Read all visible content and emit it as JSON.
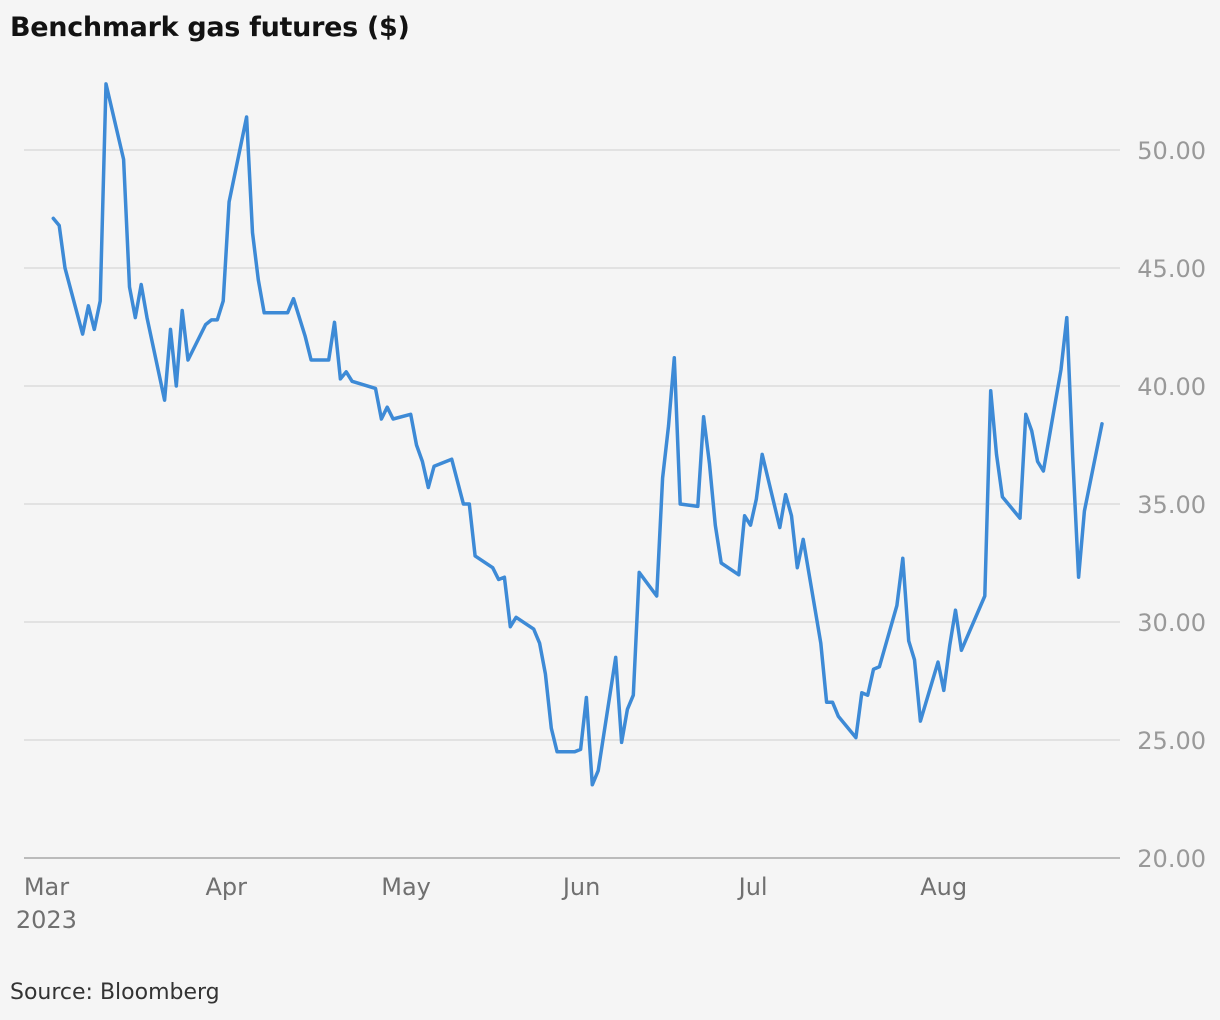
{
  "title": "Benchmark gas futures ($)",
  "source": "Source: Bloomberg",
  "chart_data": {
    "type": "line",
    "title": "Benchmark gas futures ($)",
    "xlabel": "",
    "ylabel": "",
    "x_range": [
      "2023-02-28",
      "2023-08-31"
    ],
    "ylim": [
      20,
      52
    ],
    "y_ticks": [
      20,
      25,
      30,
      35,
      40,
      45,
      50
    ],
    "y_tick_labels": [
      "20.00",
      "25.00",
      "30.00",
      "35.00",
      "40.00",
      "45.00",
      "50.00"
    ],
    "x_ticks": [
      {
        "date": "2023-03-01",
        "label": "Mar",
        "sublabel": "2023"
      },
      {
        "date": "2023-04-01",
        "label": "Apr",
        "sublabel": ""
      },
      {
        "date": "2023-05-01",
        "label": "May",
        "sublabel": ""
      },
      {
        "date": "2023-06-01",
        "label": "Jun",
        "sublabel": ""
      },
      {
        "date": "2023-07-01",
        "label": "Jul",
        "sublabel": ""
      },
      {
        "date": "2023-08-01",
        "label": "Aug",
        "sublabel": ""
      }
    ],
    "grid": "horizontal",
    "line_color": "#3d8ad6",
    "series": [
      {
        "points": [
          [
            "2023-03-05",
            47.1
          ],
          [
            "2023-03-06",
            46.8
          ],
          [
            "2023-03-07",
            45.0
          ],
          [
            "2023-03-10",
            42.2
          ],
          [
            "2023-03-11",
            43.4
          ],
          [
            "2023-03-12",
            42.4
          ],
          [
            "2023-03-13",
            43.6
          ],
          [
            "2023-03-14",
            52.8
          ],
          [
            "2023-03-17",
            49.6
          ],
          [
            "2023-03-18",
            44.2
          ],
          [
            "2023-03-19",
            42.9
          ],
          [
            "2023-03-20",
            44.3
          ],
          [
            "2023-03-21",
            42.9
          ],
          [
            "2023-03-24",
            39.4
          ],
          [
            "2023-03-25",
            42.4
          ],
          [
            "2023-03-26",
            40.0
          ],
          [
            "2023-03-27",
            43.2
          ],
          [
            "2023-03-28",
            41.1
          ],
          [
            "2023-03-31",
            42.6
          ],
          [
            "2023-04-01",
            42.8
          ],
          [
            "2023-04-02",
            42.8
          ],
          [
            "2023-04-03",
            43.6
          ],
          [
            "2023-04-04",
            47.8
          ],
          [
            "2023-04-07",
            51.4
          ],
          [
            "2023-04-08",
            46.5
          ],
          [
            "2023-04-09",
            44.5
          ],
          [
            "2023-04-10",
            43.1
          ],
          [
            "2023-04-14",
            43.1
          ],
          [
            "2023-04-15",
            43.7
          ],
          [
            "2023-04-17",
            42.1
          ],
          [
            "2023-04-18",
            41.1
          ],
          [
            "2023-04-21",
            41.1
          ],
          [
            "2023-04-22",
            42.7
          ],
          [
            "2023-04-23",
            40.3
          ],
          [
            "2023-04-24",
            40.6
          ],
          [
            "2023-04-25",
            40.2
          ],
          [
            "2023-04-29",
            39.9
          ],
          [
            "2023-04-30",
            38.6
          ],
          [
            "2023-05-01",
            39.1
          ],
          [
            "2023-05-02",
            38.6
          ],
          [
            "2023-05-05",
            38.8
          ],
          [
            "2023-05-06",
            37.5
          ],
          [
            "2023-05-07",
            36.8
          ],
          [
            "2023-05-08",
            35.7
          ],
          [
            "2023-05-09",
            36.6
          ],
          [
            "2023-05-12",
            36.9
          ],
          [
            "2023-05-14",
            35.0
          ],
          [
            "2023-05-15",
            35.0
          ],
          [
            "2023-05-16",
            32.8
          ],
          [
            "2023-05-19",
            32.3
          ],
          [
            "2023-05-20",
            31.8
          ],
          [
            "2023-05-21",
            31.9
          ],
          [
            "2023-05-22",
            29.8
          ],
          [
            "2023-05-23",
            30.2
          ],
          [
            "2023-05-26",
            29.7
          ],
          [
            "2023-05-27",
            29.1
          ],
          [
            "2023-05-28",
            27.8
          ],
          [
            "2023-05-29",
            25.5
          ],
          [
            "2023-05-30",
            24.5
          ],
          [
            "2023-06-02",
            24.5
          ],
          [
            "2023-06-03",
            24.6
          ],
          [
            "2023-06-04",
            26.8
          ],
          [
            "2023-06-05",
            23.1
          ],
          [
            "2023-06-06",
            23.7
          ],
          [
            "2023-06-09",
            28.5
          ],
          [
            "2023-06-10",
            24.9
          ],
          [
            "2023-06-11",
            26.3
          ],
          [
            "2023-06-12",
            26.9
          ],
          [
            "2023-06-13",
            32.1
          ],
          [
            "2023-06-16",
            31.1
          ],
          [
            "2023-06-17",
            36.1
          ],
          [
            "2023-06-18",
            38.3
          ],
          [
            "2023-06-19",
            41.2
          ],
          [
            "2023-06-20",
            35.0
          ],
          [
            "2023-06-23",
            34.9
          ],
          [
            "2023-06-24",
            38.7
          ],
          [
            "2023-06-25",
            36.7
          ],
          [
            "2023-06-26",
            34.1
          ],
          [
            "2023-06-27",
            32.5
          ],
          [
            "2023-06-30",
            32.0
          ],
          [
            "2023-07-01",
            34.5
          ],
          [
            "2023-07-02",
            34.1
          ],
          [
            "2023-07-03",
            35.2
          ],
          [
            "2023-07-04",
            37.1
          ],
          [
            "2023-07-07",
            34.0
          ],
          [
            "2023-07-08",
            35.4
          ],
          [
            "2023-07-09",
            34.5
          ],
          [
            "2023-07-10",
            32.3
          ],
          [
            "2023-07-11",
            33.5
          ],
          [
            "2023-07-14",
            29.1
          ],
          [
            "2023-07-15",
            26.6
          ],
          [
            "2023-07-16",
            26.6
          ],
          [
            "2023-07-17",
            26.0
          ],
          [
            "2023-07-20",
            25.1
          ],
          [
            "2023-07-21",
            27.0
          ],
          [
            "2023-07-22",
            26.9
          ],
          [
            "2023-07-23",
            28.0
          ],
          [
            "2023-07-24",
            28.1
          ],
          [
            "2023-07-27",
            30.7
          ],
          [
            "2023-07-28",
            32.7
          ],
          [
            "2023-07-29",
            29.2
          ],
          [
            "2023-07-30",
            28.4
          ],
          [
            "2023-07-31",
            25.8
          ],
          [
            "2023-08-03",
            28.3
          ],
          [
            "2023-08-04",
            27.1
          ],
          [
            "2023-08-05",
            29.0
          ],
          [
            "2023-08-06",
            30.5
          ],
          [
            "2023-08-07",
            28.8
          ],
          [
            "2023-08-11",
            31.1
          ],
          [
            "2023-08-12",
            39.8
          ],
          [
            "2023-08-13",
            37.1
          ],
          [
            "2023-08-14",
            35.3
          ],
          [
            "2023-08-17",
            34.4
          ],
          [
            "2023-08-18",
            38.8
          ],
          [
            "2023-08-19",
            38.1
          ],
          [
            "2023-08-20",
            36.8
          ],
          [
            "2023-08-21",
            36.4
          ],
          [
            "2023-08-24",
            40.7
          ],
          [
            "2023-08-25",
            42.9
          ],
          [
            "2023-08-26",
            37.0
          ],
          [
            "2023-08-27",
            31.9
          ],
          [
            "2023-08-28",
            34.7
          ],
          [
            "2023-08-31",
            38.4
          ]
        ]
      }
    ]
  }
}
